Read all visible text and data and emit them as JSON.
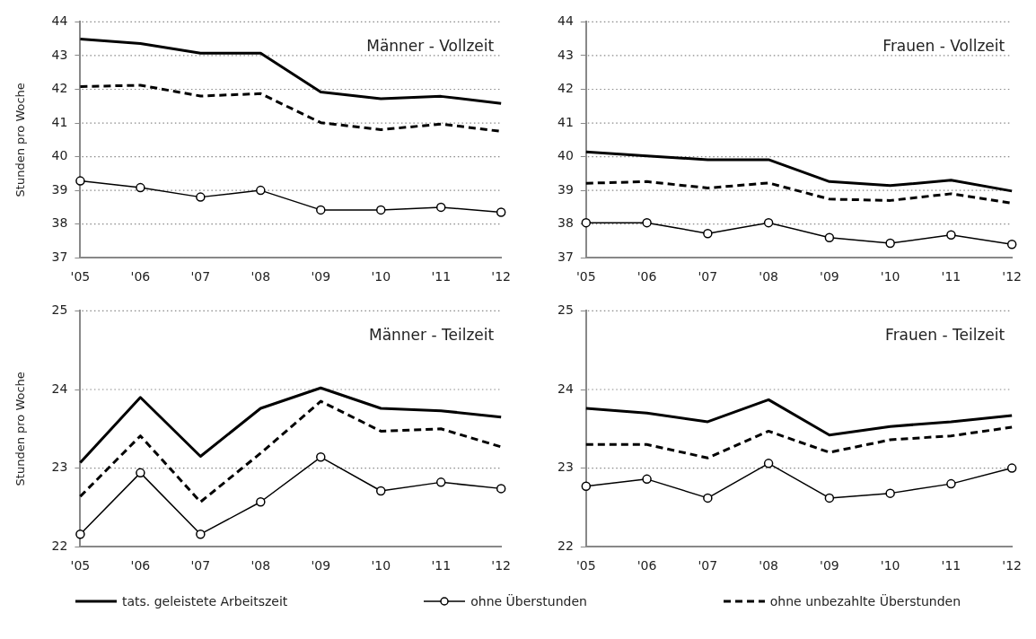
{
  "chart_data": [
    {
      "type": "line",
      "title": "Männer - Vollzeit",
      "ylabel": "Stunden pro Woche",
      "categories": [
        "'05",
        "'06",
        "'07",
        "'08",
        "'09",
        "'10",
        "'11",
        "'12"
      ],
      "ylim": [
        37,
        44
      ],
      "yticks": [
        37,
        38,
        39,
        40,
        41,
        42,
        43,
        44
      ],
      "grid": "y",
      "series": [
        {
          "color": "#000000",
          "marker": "none",
          "line_style": "solid",
          "values": [
            43.49,
            43.36,
            43.07,
            43.07,
            41.92,
            41.72,
            41.79,
            41.58
          ]
        },
        {
          "color": "#000000",
          "marker": "circle",
          "line_style": "solid",
          "values": [
            39.28,
            39.08,
            38.8,
            39.0,
            38.42,
            38.42,
            38.5,
            38.35
          ]
        },
        {
          "color": "#000000",
          "marker": "none",
          "line_style": "dashed",
          "values": [
            42.08,
            42.12,
            41.8,
            41.87,
            41.01,
            40.8,
            40.97,
            40.75
          ]
        }
      ]
    },
    {
      "type": "line",
      "title": "Frauen - Vollzeit",
      "categories": [
        "'05",
        "'06",
        "'07",
        "'08",
        "'09",
        "'10",
        "'11",
        "'12"
      ],
      "ylim": [
        37,
        44
      ],
      "yticks": [
        37,
        38,
        39,
        40,
        41,
        42,
        43,
        44
      ],
      "grid": "y",
      "series": [
        {
          "color": "#000000",
          "marker": "none",
          "line_style": "solid",
          "values": [
            40.14,
            40.02,
            39.91,
            39.91,
            39.26,
            39.14,
            39.3,
            38.98
          ]
        },
        {
          "color": "#000000",
          "marker": "circle",
          "line_style": "solid",
          "values": [
            38.04,
            38.04,
            37.72,
            38.04,
            37.6,
            37.43,
            37.68,
            37.4
          ]
        },
        {
          "color": "#000000",
          "marker": "none",
          "line_style": "dashed",
          "values": [
            39.21,
            39.26,
            39.07,
            39.22,
            38.74,
            38.7,
            38.9,
            38.62
          ]
        }
      ]
    },
    {
      "type": "line",
      "title": "Männer - Teilzeit",
      "ylabel": "Stunden pro Woche",
      "categories": [
        "'05",
        "'06",
        "'07",
        "'08",
        "'09",
        "'10",
        "'11",
        "'12"
      ],
      "ylim": [
        22,
        25
      ],
      "yticks": [
        22,
        23,
        24,
        25
      ],
      "grid": "y",
      "series": [
        {
          "color": "#000000",
          "marker": "none",
          "line_style": "solid",
          "values": [
            23.07,
            23.9,
            23.15,
            23.76,
            24.02,
            23.76,
            23.73,
            23.65
          ]
        },
        {
          "color": "#000000",
          "marker": "circle",
          "line_style": "solid",
          "values": [
            22.16,
            22.94,
            22.16,
            22.57,
            23.14,
            22.71,
            22.82,
            22.74
          ]
        },
        {
          "color": "#000000",
          "marker": "none",
          "line_style": "dashed",
          "values": [
            22.64,
            23.41,
            22.57,
            23.19,
            23.85,
            23.47,
            23.5,
            23.27
          ]
        }
      ]
    },
    {
      "type": "line",
      "title": "Frauen - Teilzeit",
      "categories": [
        "'05",
        "'06",
        "'07",
        "'08",
        "'09",
        "'10",
        "'11",
        "'12"
      ],
      "ylim": [
        22,
        25
      ],
      "yticks": [
        22,
        23,
        24,
        25
      ],
      "grid": "y",
      "legend": "bottom",
      "series": [
        {
          "name": "tats. geleistete Arbeitszeit",
          "color": "#000000",
          "marker": "none",
          "line_style": "solid",
          "values": [
            23.76,
            23.7,
            23.59,
            23.87,
            23.42,
            23.53,
            23.59,
            23.67
          ]
        },
        {
          "name": "ohne Überstunden",
          "color": "#000000",
          "marker": "circle",
          "line_style": "solid",
          "values": [
            22.77,
            22.86,
            22.62,
            23.06,
            22.62,
            22.68,
            22.8,
            23.0
          ]
        },
        {
          "name": "ohne unbezahlte Überstunden",
          "color": "#000000",
          "marker": "none",
          "line_style": "dashed",
          "values": [
            23.3,
            23.3,
            23.13,
            23.47,
            23.2,
            23.36,
            23.41,
            23.52
          ]
        }
      ]
    }
  ]
}
